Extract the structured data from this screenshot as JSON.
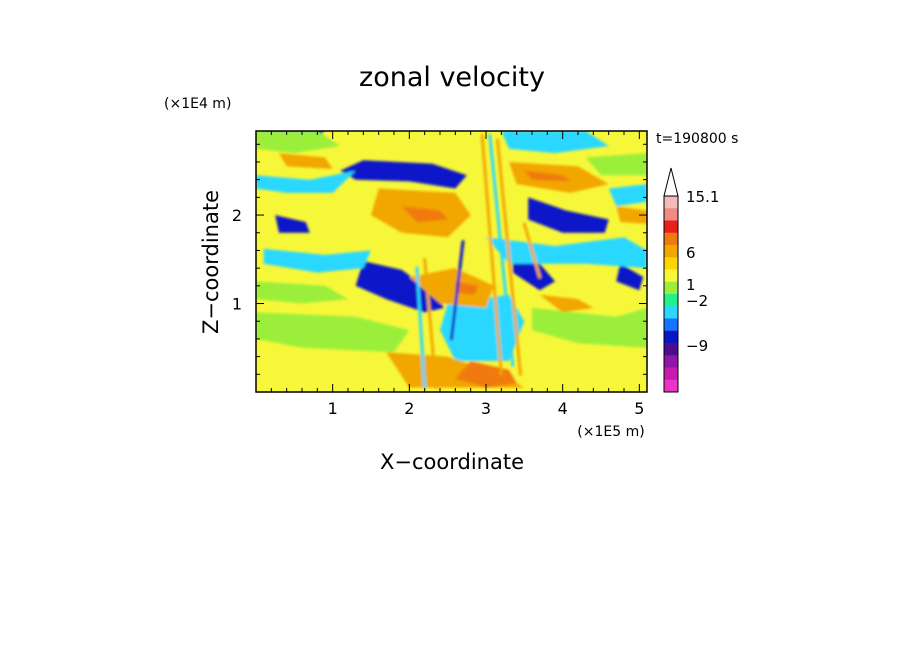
{
  "chart_data": {
    "type": "heatmap",
    "title": "zonal velocity",
    "xlabel": "X−coordinate",
    "ylabel": "Z−coordinate",
    "x_unit": "(×1E5 m)",
    "y_unit": "(×1E4 m)",
    "time_label": "t=190800 s",
    "xlim": [
      0,
      5.1
    ],
    "ylim": [
      0,
      2.95
    ],
    "x_ticks": [
      1,
      2,
      3,
      4,
      5
    ],
    "x_tick_labels": [
      "1",
      "2",
      "3",
      "4",
      "5"
    ],
    "y_ticks": [
      1,
      2
    ],
    "y_tick_labels": [
      "1",
      "2"
    ],
    "grid": false,
    "colorbar": {
      "levels_labeled": [
        "15.1",
        "6",
        "1",
        "−2",
        "−9"
      ],
      "label_values": [
        15.1,
        6,
        1,
        -2,
        -9
      ],
      "colors_top_to_bottom": [
        "#f6b9b9",
        "#f08a84",
        "#e8201c",
        "#f07a10",
        "#f2a600",
        "#ffd400",
        "#f7f73a",
        "#9bef3a",
        "#22f08a",
        "#29d8ff",
        "#1474ff",
        "#0c14c8",
        "#4b0d8e",
        "#8f16a8",
        "#c81ab2",
        "#f033c8"
      ],
      "extend_top": true
    },
    "bands": [
      {
        "value": -6,
        "points": [
          [
            1.4,
            2.62
          ],
          [
            2.3,
            2.58
          ],
          [
            2.75,
            2.45
          ],
          [
            2.6,
            2.3
          ],
          [
            2.0,
            2.38
          ],
          [
            1.3,
            2.4
          ],
          [
            1.1,
            2.5
          ]
        ]
      },
      {
        "value": -6,
        "points": [
          [
            0.25,
            2.0
          ],
          [
            0.65,
            1.92
          ],
          [
            0.7,
            1.8
          ],
          [
            0.3,
            1.8
          ]
        ]
      },
      {
        "value": -6,
        "points": [
          [
            1.4,
            1.48
          ],
          [
            1.9,
            1.38
          ],
          [
            2.35,
            1.1
          ],
          [
            2.45,
            0.95
          ],
          [
            2.2,
            0.9
          ],
          [
            1.7,
            1.05
          ],
          [
            1.3,
            1.2
          ]
        ]
      },
      {
        "value": -6,
        "points": [
          [
            0.05,
            2.98
          ],
          [
            0.9,
            2.98
          ],
          [
            0.8,
            2.82
          ],
          [
            0.2,
            2.85
          ]
        ]
      },
      {
        "value": -6,
        "points": [
          [
            3.55,
            2.2
          ],
          [
            4.05,
            2.05
          ],
          [
            4.6,
            1.95
          ],
          [
            4.55,
            1.8
          ],
          [
            4.0,
            1.8
          ],
          [
            3.55,
            1.95
          ]
        ]
      },
      {
        "value": -6,
        "points": [
          [
            3.35,
            1.6
          ],
          [
            3.7,
            1.45
          ],
          [
            3.9,
            1.25
          ],
          [
            3.7,
            1.15
          ],
          [
            3.35,
            1.35
          ]
        ]
      },
      {
        "value": -6,
        "points": [
          [
            2.65,
            0.6
          ],
          [
            2.9,
            0.42
          ],
          [
            3.15,
            0.5
          ],
          [
            3.3,
            0.75
          ],
          [
            3.2,
            0.9
          ],
          [
            3.0,
            0.65
          ],
          [
            2.8,
            0.75
          ]
        ]
      },
      {
        "value": -6,
        "points": [
          [
            4.75,
            1.45
          ],
          [
            5.05,
            1.3
          ],
          [
            5.0,
            1.15
          ],
          [
            4.7,
            1.25
          ]
        ]
      },
      {
        "value": -1.5,
        "points": [
          [
            0.0,
            2.45
          ],
          [
            0.7,
            2.4
          ],
          [
            1.3,
            2.5
          ],
          [
            1.0,
            2.25
          ],
          [
            0.4,
            2.25
          ],
          [
            0.0,
            2.3
          ]
        ]
      },
      {
        "value": -1.5,
        "points": [
          [
            0.1,
            1.62
          ],
          [
            0.9,
            1.55
          ],
          [
            1.5,
            1.6
          ],
          [
            1.4,
            1.4
          ],
          [
            0.8,
            1.35
          ],
          [
            0.1,
            1.45
          ]
        ]
      },
      {
        "value": -1.5,
        "points": [
          [
            3.2,
            2.95
          ],
          [
            4.3,
            2.95
          ],
          [
            4.6,
            2.78
          ],
          [
            3.9,
            2.7
          ],
          [
            3.3,
            2.75
          ]
        ]
      },
      {
        "value": -1.5,
        "points": [
          [
            3.0,
            1.75
          ],
          [
            3.9,
            1.65
          ],
          [
            4.8,
            1.75
          ],
          [
            5.1,
            1.6
          ],
          [
            5.1,
            1.4
          ],
          [
            4.3,
            1.45
          ],
          [
            3.3,
            1.45
          ]
        ]
      },
      {
        "value": -1.5,
        "points": [
          [
            2.5,
            1.0
          ],
          [
            3.3,
            1.1
          ],
          [
            3.5,
            0.8
          ],
          [
            3.3,
            0.35
          ],
          [
            2.6,
            0.35
          ],
          [
            2.4,
            0.7
          ]
        ]
      },
      {
        "value": -1.5,
        "points": [
          [
            4.6,
            2.3
          ],
          [
            5.1,
            2.35
          ],
          [
            5.1,
            2.15
          ],
          [
            4.7,
            2.1
          ]
        ]
      },
      {
        "value": 0.5,
        "points": [
          [
            0.0,
            0.9
          ],
          [
            1.3,
            0.85
          ],
          [
            2.0,
            0.7
          ],
          [
            1.8,
            0.45
          ],
          [
            0.6,
            0.5
          ],
          [
            0.0,
            0.6
          ]
        ]
      },
      {
        "value": 0.5,
        "points": [
          [
            3.6,
            0.95
          ],
          [
            4.7,
            0.85
          ],
          [
            5.1,
            0.95
          ],
          [
            5.1,
            0.5
          ],
          [
            4.2,
            0.55
          ],
          [
            3.6,
            0.7
          ]
        ]
      },
      {
        "value": 0.5,
        "points": [
          [
            0.0,
            2.95
          ],
          [
            0.8,
            2.95
          ],
          [
            1.1,
            2.78
          ],
          [
            0.5,
            2.7
          ],
          [
            0.0,
            2.75
          ]
        ]
      },
      {
        "value": 0.5,
        "points": [
          [
            4.3,
            2.65
          ],
          [
            5.1,
            2.7
          ],
          [
            5.1,
            2.45
          ],
          [
            4.5,
            2.45
          ]
        ]
      },
      {
        "value": 0.5,
        "points": [
          [
            0.0,
            1.25
          ],
          [
            0.9,
            1.2
          ],
          [
            1.2,
            1.05
          ],
          [
            0.6,
            1.0
          ],
          [
            0.0,
            1.05
          ]
        ]
      },
      {
        "value": 2.5,
        "points": [
          [
            1.6,
            2.3
          ],
          [
            2.6,
            2.25
          ],
          [
            2.8,
            2.0
          ],
          [
            2.5,
            1.75
          ],
          [
            1.9,
            1.8
          ],
          [
            1.5,
            2.0
          ]
        ]
      },
      {
        "value": 2.5,
        "points": [
          [
            3.3,
            2.6
          ],
          [
            4.2,
            2.55
          ],
          [
            4.6,
            2.35
          ],
          [
            4.1,
            2.25
          ],
          [
            3.4,
            2.35
          ]
        ]
      },
      {
        "value": 2.5,
        "points": [
          [
            0.3,
            2.7
          ],
          [
            0.9,
            2.65
          ],
          [
            1.0,
            2.52
          ],
          [
            0.4,
            2.55
          ]
        ]
      },
      {
        "value": 2.5,
        "points": [
          [
            2.0,
            1.3
          ],
          [
            2.6,
            1.4
          ],
          [
            3.1,
            1.2
          ],
          [
            3.0,
            0.95
          ],
          [
            2.4,
            1.0
          ]
        ]
      },
      {
        "value": 2.5,
        "points": [
          [
            1.7,
            0.45
          ],
          [
            2.5,
            0.4
          ],
          [
            3.2,
            0.2
          ],
          [
            3.5,
            0.05
          ],
          [
            2.0,
            0.05
          ]
        ]
      },
      {
        "value": 2.5,
        "points": [
          [
            3.7,
            1.1
          ],
          [
            4.2,
            1.05
          ],
          [
            4.4,
            0.95
          ],
          [
            4.0,
            0.9
          ]
        ]
      },
      {
        "value": 2.5,
        "points": [
          [
            4.7,
            2.1
          ],
          [
            5.1,
            2.05
          ],
          [
            5.1,
            1.9
          ],
          [
            4.75,
            1.92
          ]
        ]
      },
      {
        "value": 5,
        "points": [
          [
            1.9,
            2.1
          ],
          [
            2.4,
            2.05
          ],
          [
            2.5,
            1.95
          ],
          [
            2.1,
            1.92
          ]
        ]
      },
      {
        "value": 5,
        "points": [
          [
            3.5,
            2.5
          ],
          [
            4.0,
            2.45
          ],
          [
            4.1,
            2.38
          ],
          [
            3.6,
            2.4
          ]
        ]
      },
      {
        "value": 5,
        "points": [
          [
            2.8,
            0.35
          ],
          [
            3.3,
            0.25
          ],
          [
            3.4,
            0.1
          ],
          [
            3.0,
            0.05
          ],
          [
            2.6,
            0.15
          ]
        ]
      },
      {
        "value": 5,
        "points": [
          [
            2.6,
            1.25
          ],
          [
            2.9,
            1.2
          ],
          [
            2.85,
            1.1
          ],
          [
            2.6,
            1.12
          ]
        ]
      }
    ],
    "streaks": [
      {
        "value": 2.5,
        "from": [
          2.95,
          2.9
        ],
        "to": [
          3.2,
          0.2
        ]
      },
      {
        "value": -1.5,
        "from": [
          3.05,
          2.9
        ],
        "to": [
          3.35,
          0.3
        ]
      },
      {
        "value": 2.5,
        "from": [
          3.15,
          2.85
        ],
        "to": [
          3.45,
          0.2
        ]
      },
      {
        "value": -6,
        "from": [
          2.7,
          1.7
        ],
        "to": [
          2.55,
          0.6
        ]
      },
      {
        "value": 2.5,
        "from": [
          2.2,
          1.5
        ],
        "to": [
          2.35,
          0.05
        ]
      },
      {
        "value": -1.5,
        "from": [
          2.1,
          1.4
        ],
        "to": [
          2.2,
          0.05
        ]
      },
      {
        "value": 2.5,
        "from": [
          3.5,
          1.9
        ],
        "to": [
          3.7,
          1.3
        ]
      }
    ]
  },
  "colors": {
    "background_field": "#f7f73a",
    "frame": "#000000"
  }
}
